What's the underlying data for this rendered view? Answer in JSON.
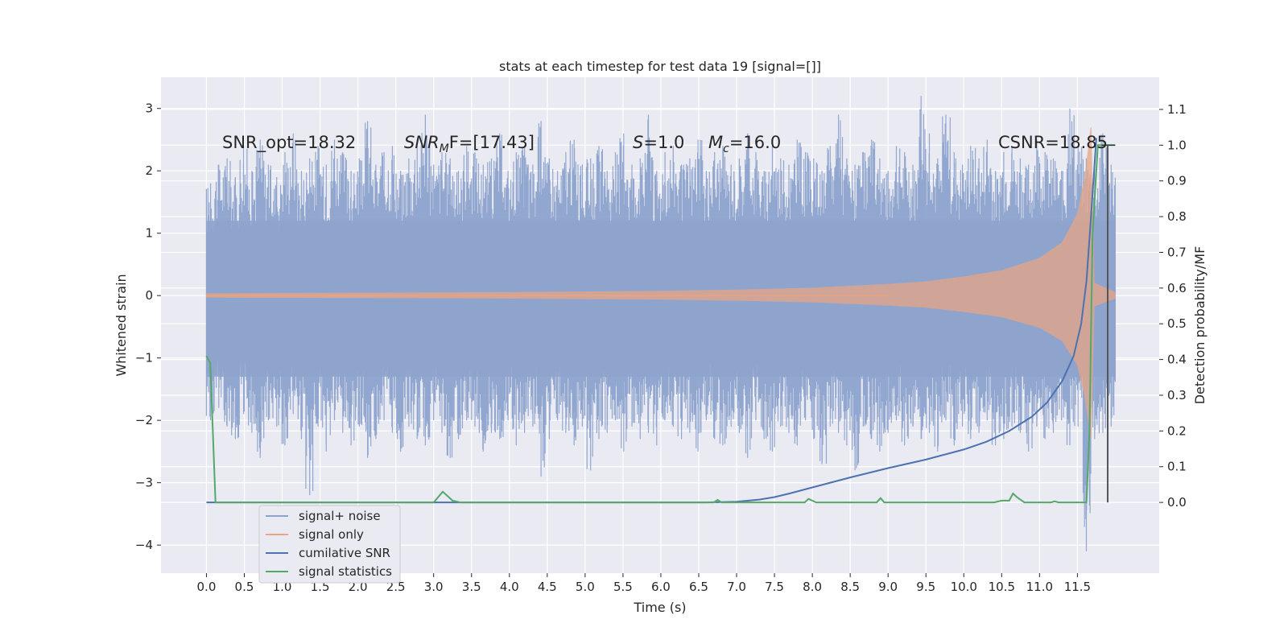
{
  "chart_data": {
    "type": "line",
    "title": "stats at each timestep for test data 19 [signal=[]]",
    "xlabel": "Time (s)",
    "ylabel": "Whitened strain",
    "y2label": "Detection probability/MF",
    "xlim": [
      -0.6,
      12.58
    ],
    "ylim": [
      -4.45,
      3.5
    ],
    "y2lim": [
      -0.198,
      1.19
    ],
    "grid": true,
    "legend_position": "lower-left",
    "x_ticks": [
      "0.0",
      "0.5",
      "1.0",
      "1.5",
      "2.0",
      "2.5",
      "3.0",
      "3.5",
      "4.0",
      "4.5",
      "5.0",
      "5.5",
      "6.0",
      "6.5",
      "7.0",
      "7.5",
      "8.0",
      "8.5",
      "9.0",
      "9.5",
      "10.0",
      "10.5",
      "11.0",
      "11.5"
    ],
    "y_ticks": [
      "3",
      "2",
      "1",
      "0",
      "−1",
      "−2",
      "−3",
      "−4"
    ],
    "y2_ticks": [
      "1.1",
      "1.0",
      "0.9",
      "0.8",
      "0.7",
      "0.6",
      "0.5",
      "0.4",
      "0.3",
      "0.2",
      "0.1",
      "0.0"
    ],
    "annotations": {
      "snr_opt": "SNR_opt=18.32",
      "snr_mf_main": "SNR",
      "snr_mf_sub": "M",
      "snr_mf_rest": "F=[17.43]",
      "s_var": "S",
      "s_rest": "=1.0",
      "mc_var": "M",
      "mc_sub": "c",
      "mc_rest": "=16.0",
      "csnr": "CSNR=18.85"
    },
    "series": [
      {
        "name": "signal+ noise",
        "color": "#8da3cc",
        "axis": "left",
        "noise_max": [
          1.8,
          2.1,
          2.2,
          1.9,
          2.4,
          2.0,
          2.5,
          2.1,
          1.9,
          2.3,
          2.6,
          2.0,
          2.2,
          2.4,
          2.1,
          2.5,
          2.3,
          2.0,
          2.2,
          2.8,
          2.1,
          2.3,
          2.4,
          2.0,
          2.2,
          2.5,
          2.9,
          2.1,
          2.3,
          2.2,
          2.0,
          2.4,
          2.3,
          2.1,
          2.2,
          2.6,
          2.0,
          2.3,
          2.4,
          2.1,
          2.8,
          2.2,
          2.0,
          2.3,
          2.5,
          2.1,
          2.2,
          2.4,
          2.0,
          2.3,
          2.6,
          2.1,
          2.2,
          2.9,
          2.0,
          2.3,
          2.4,
          2.1,
          2.2,
          2.5,
          2.0,
          2.3,
          2.4,
          2.1,
          2.2,
          2.6,
          2.3,
          2.0,
          2.4,
          2.2,
          2.1,
          2.5,
          2.3,
          2.2,
          2.0,
          2.4,
          2.9,
          2.2,
          2.1,
          2.3,
          2.5,
          2.2,
          2.0,
          2.4,
          2.3,
          2.1,
          3.2,
          2.6,
          2.2,
          2.9,
          2.3,
          2.1,
          2.4,
          2.2,
          2.5,
          2.0,
          2.3,
          2.4,
          2.2,
          2.1,
          2.5,
          2.3,
          2.2,
          2.0,
          3.0,
          2.4,
          2.2,
          2.1,
          2.6,
          2.1
        ],
        "noise_min": [
          -2.0,
          -1.8,
          -2.1,
          -2.3,
          -1.9,
          -2.2,
          -2.6,
          -2.0,
          -2.1,
          -2.4,
          -1.9,
          -2.3,
          -3.2,
          -2.1,
          -2.5,
          -2.0,
          -2.2,
          -2.4,
          -2.1,
          -2.6,
          -2.3,
          -2.0,
          -2.2,
          -2.5,
          -2.1,
          -2.3,
          -2.4,
          -2.0,
          -2.2,
          -2.6,
          -2.3,
          -2.0,
          -2.1,
          -2.5,
          -2.2,
          -2.3,
          -2.0,
          -2.4,
          -2.2,
          -2.1,
          -2.9,
          -2.3,
          -2.0,
          -2.2,
          -2.4,
          -2.1,
          -2.8,
          -2.3,
          -2.2,
          -2.0,
          -2.5,
          -2.1,
          -2.3,
          -2.2,
          -2.4,
          -2.0,
          -2.1,
          -2.3,
          -2.2,
          -2.5,
          -2.0,
          -2.3,
          -2.4,
          -2.1,
          -2.2,
          -2.6,
          -2.0,
          -2.3,
          -2.5,
          -2.1,
          -2.2,
          -2.4,
          -2.0,
          -2.3,
          -2.7,
          -2.1,
          -2.2,
          -2.4,
          -2.8,
          -2.1,
          -2.3,
          -2.5,
          -2.2,
          -2.0,
          -2.4,
          -2.1,
          -2.3,
          -2.2,
          -2.5,
          -2.0,
          -2.4,
          -2.1,
          -2.3,
          -2.2,
          -2.0,
          -2.4,
          -2.3,
          -2.1,
          -2.2,
          -2.5,
          -2.1,
          -2.3,
          -2.2,
          -2.0,
          -2.4,
          -2.1,
          -4.1,
          -2.3,
          -2.2,
          -2.1
        ]
      },
      {
        "name": "signal only",
        "color": "#e7a585",
        "axis": "left",
        "envelope": [
          [
            0,
            0.03
          ],
          [
            2,
            0.04
          ],
          [
            4,
            0.05
          ],
          [
            6,
            0.07
          ],
          [
            7,
            0.09
          ],
          [
            8,
            0.12
          ],
          [
            9,
            0.18
          ],
          [
            9.5,
            0.22
          ],
          [
            10,
            0.3
          ],
          [
            10.5,
            0.4
          ],
          [
            11,
            0.6
          ],
          [
            11.3,
            0.85
          ],
          [
            11.5,
            1.3
          ],
          [
            11.6,
            1.9
          ],
          [
            11.68,
            2.7
          ],
          [
            11.72,
            0.2
          ],
          [
            12.0,
            0.05
          ]
        ]
      },
      {
        "name": "cumilative SNR",
        "color": "#4c72b0",
        "axis": "right",
        "x": [
          6.6,
          7.0,
          7.3,
          7.5,
          7.7,
          8.0,
          8.5,
          9.0,
          9.5,
          10.0,
          10.3,
          10.6,
          10.9,
          11.1,
          11.3,
          11.45,
          11.55,
          11.62,
          11.68,
          11.75
        ],
        "values": [
          0.0,
          0.002,
          0.008,
          0.015,
          0.025,
          0.042,
          0.07,
          0.096,
          0.12,
          0.148,
          0.17,
          0.2,
          0.24,
          0.28,
          0.34,
          0.41,
          0.5,
          0.62,
          0.8,
          1.02
        ]
      },
      {
        "name": "signal statistics",
        "color": "#55a868",
        "axis": "right",
        "x": [
          0.0,
          0.05,
          0.12,
          0.14,
          3.0,
          3.12,
          3.25,
          3.35,
          6.7,
          6.75,
          6.8,
          7.9,
          7.95,
          8.05,
          8.85,
          8.9,
          8.95,
          10.4,
          10.5,
          10.6,
          10.65,
          10.7,
          10.8,
          11.15,
          11.2,
          11.25,
          11.62,
          11.66,
          11.7,
          11.77,
          11.82,
          12.0
        ],
        "values": [
          0.41,
          0.39,
          0.0,
          0.0,
          0.0,
          0.03,
          0.005,
          0.0,
          0.0,
          0.007,
          0.0,
          0.0,
          0.01,
          0.0,
          0.0,
          0.012,
          0.0,
          0.0,
          0.005,
          0.005,
          0.025,
          0.015,
          0.0,
          0.0,
          0.003,
          0.0,
          0.0,
          0.2,
          0.75,
          1.0,
          1.0,
          1.0
        ]
      }
    ],
    "vline": {
      "x": 11.9,
      "y2_from": 0.0,
      "y2_to": 1.0,
      "color": "#555555"
    }
  }
}
